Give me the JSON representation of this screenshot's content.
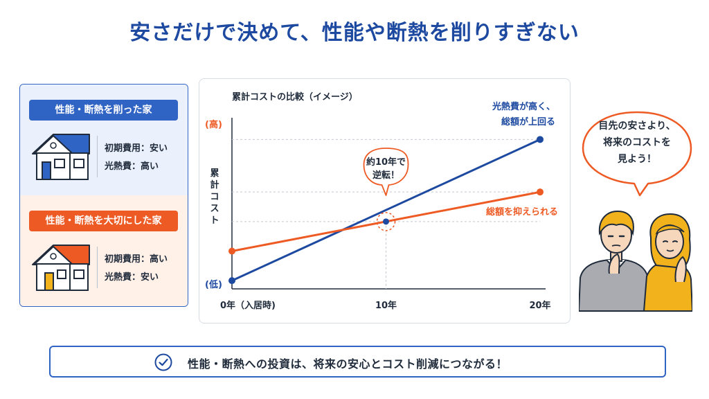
{
  "title": "安さだけで決めて、性能や断熱を削りすぎない",
  "colors": {
    "blue": "#1d4aa0",
    "accent_blue": "#2f63c4",
    "orange": "#ee5a23"
  },
  "left_panel": {
    "cut_house": {
      "label": "性能・断熱を削った家",
      "initial_cost": "初期費用：安い",
      "energy_cost": "光熱費：高い"
    },
    "care_house": {
      "label": "性能・断熱を大切にした家",
      "initial_cost": "初期費用：高い",
      "energy_cost": "光熱費：安い"
    }
  },
  "chart_data": {
    "type": "line",
    "title": "累計コストの比較（イメージ）",
    "ylabel": "累計コスト",
    "y_high_label": "(高)",
    "y_low_label": "(低)",
    "x": [
      0,
      20
    ],
    "x_ticks": [
      {
        "x": 0,
        "label": "0年（入居時)"
      },
      {
        "x": 10,
        "label": "10年"
      },
      {
        "x": 20,
        "label": "20年"
      }
    ],
    "ylim": [
      0,
      100
    ],
    "grid": false,
    "series": [
      {
        "key": "cut",
        "color": "#1d4aa0",
        "values": [
          5,
          91
        ]
      },
      {
        "key": "care",
        "color": "#ee5a23",
        "values": [
          23,
          59
        ]
      }
    ],
    "annotations": {
      "cut_line": [
        "光熱費が高く、",
        "総額が上回る"
      ],
      "care_line": "総額を抑えられる",
      "crossover": [
        "約10年で",
        "逆転！"
      ],
      "crossover_x": 10,
      "crossover_y": 41
    }
  },
  "speech_bubble": [
    "目先の安さより、",
    "将来のコストを",
    "見よう！"
  ],
  "people_icon": "thinking-couple-illustration",
  "banner": {
    "icon": "check-circle-icon",
    "text": "性能・断熱への投資は、将来の安心とコスト削減につながる！"
  }
}
